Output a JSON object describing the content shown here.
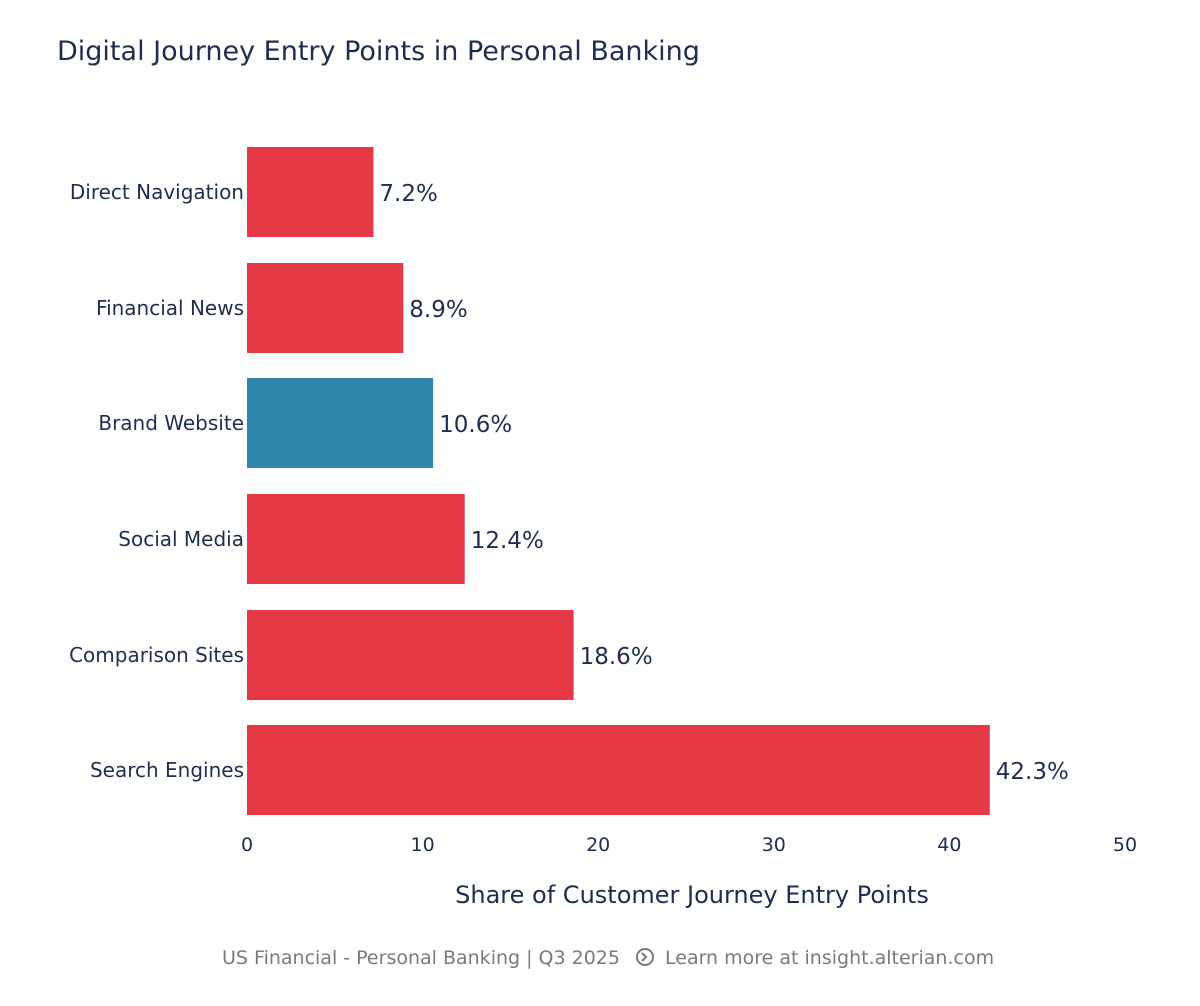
{
  "chart_data": {
    "type": "bar",
    "orientation": "horizontal",
    "title": "Digital Journey Entry Points in Personal Banking",
    "categories": [
      "Direct Navigation",
      "Financial News",
      "Brand Website",
      "Social Media",
      "Comparison Sites",
      "Search Engines"
    ],
    "values": [
      7.2,
      8.9,
      10.6,
      12.4,
      18.6,
      42.3
    ],
    "value_labels": [
      "7.2%",
      "8.9%",
      "10.6%",
      "12.4%",
      "18.6%",
      "42.3%"
    ],
    "highlight": "Brand Website",
    "xlabel": "Share of Customer Journey Entry Points",
    "ylabel": "",
    "xlim": [
      0,
      50
    ],
    "xticks": [
      0,
      10,
      20,
      30,
      40,
      50
    ],
    "xtick_labels": [
      "0",
      "10",
      "20",
      "30",
      "40",
      "50"
    ],
    "grid": false,
    "colors": {
      "default": "#e63946",
      "highlight": "#2e86ab",
      "text": "#1f2d4e"
    }
  },
  "footer": {
    "source": "US Financial - Personal Banking | Q3 2025",
    "icon": "arrow-circle-right-icon",
    "link": "Learn more at insight.alterian.com"
  }
}
